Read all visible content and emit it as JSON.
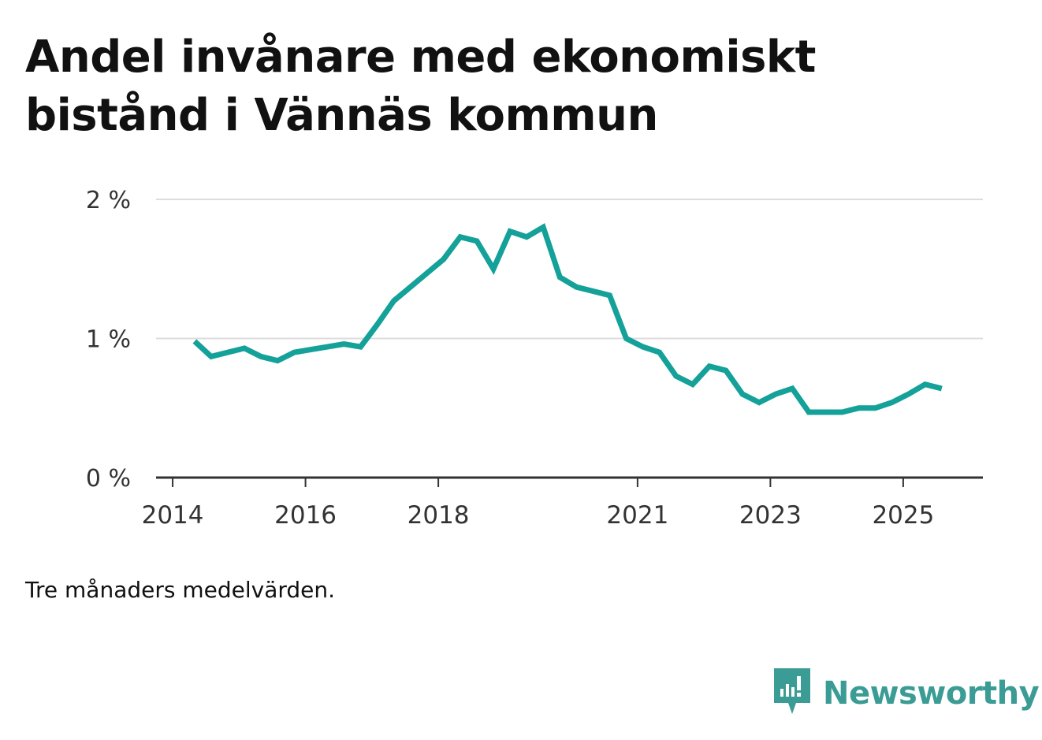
{
  "title": "Andel invånare med ekonomiskt bistånd i Vännäs kommun",
  "note": "Tre månaders medelvärden.",
  "brand": {
    "name": "Newsworthy",
    "icon": "newsworthy-logo-icon",
    "color": "#3a9c94"
  },
  "colors": {
    "line": "#13a199",
    "grid": "#dddddd",
    "axis": "#333333",
    "text": "#111111",
    "tick_text": "#333333"
  },
  "chart_data": {
    "type": "line",
    "title": "Andel invånare med ekonomiskt bistånd i Vännäs kommun",
    "xlabel": "",
    "ylabel": "",
    "unit": "%",
    "ylim": [
      0,
      2
    ],
    "xlim": [
      2013.75,
      2026.2
    ],
    "grid": true,
    "y_ticks": [
      {
        "value": 0,
        "label": "0 %"
      },
      {
        "value": 1,
        "label": "1 %"
      },
      {
        "value": 2,
        "label": "2 %"
      }
    ],
    "x_ticks": [
      {
        "value": 2014,
        "label": "2014"
      },
      {
        "value": 2016,
        "label": "2016"
      },
      {
        "value": 2018,
        "label": "2018"
      },
      {
        "value": 2021,
        "label": "2021"
      },
      {
        "value": 2023,
        "label": "2023"
      },
      {
        "value": 2025,
        "label": "2025"
      }
    ],
    "series": [
      {
        "name": "Andel invånare med ekonomiskt bistånd",
        "x": [
          2014.33,
          2014.58,
          2014.83,
          2015.08,
          2015.33,
          2015.58,
          2015.83,
          2016.08,
          2016.33,
          2016.58,
          2016.83,
          2017.08,
          2017.33,
          2017.58,
          2017.83,
          2018.08,
          2018.33,
          2018.58,
          2018.83,
          2019.08,
          2019.33,
          2019.58,
          2019.83,
          2020.08,
          2020.33,
          2020.58,
          2020.83,
          2021.08,
          2021.33,
          2021.58,
          2021.83,
          2022.08,
          2022.33,
          2022.58,
          2022.83,
          2023.08,
          2023.33,
          2023.58,
          2023.83,
          2024.08,
          2024.33,
          2024.58,
          2024.83,
          2025.08,
          2025.33,
          2025.58
        ],
        "values": [
          0.98,
          0.87,
          0.9,
          0.93,
          0.87,
          0.84,
          0.9,
          0.92,
          0.94,
          0.96,
          0.94,
          1.1,
          1.27,
          1.37,
          1.47,
          1.57,
          1.73,
          1.7,
          1.5,
          1.77,
          1.73,
          1.8,
          1.44,
          1.37,
          1.34,
          1.31,
          1.0,
          0.94,
          0.9,
          0.73,
          0.67,
          0.8,
          0.77,
          0.6,
          0.54,
          0.6,
          0.64,
          0.47,
          0.47,
          0.47,
          0.5,
          0.5,
          0.54,
          0.6,
          0.67,
          0.64
        ]
      }
    ]
  }
}
